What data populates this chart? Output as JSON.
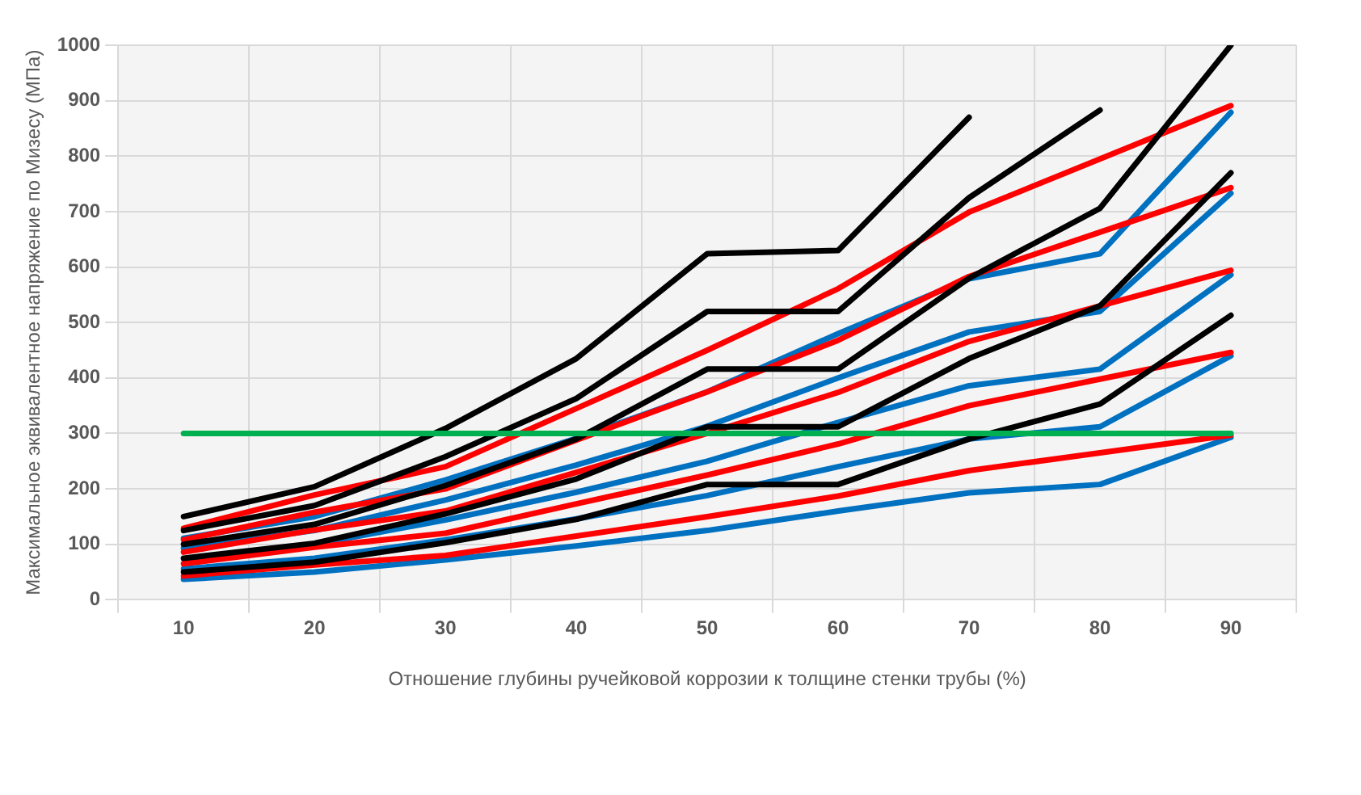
{
  "chart_data": {
    "type": "line",
    "xlabel": "Отношение глубины ручейковой коррозии к толщине стенки трубы (%)",
    "ylabel": "Максимальное эквивалентное напряжение по Мизесу (МПа)",
    "categories": [
      "10",
      "20",
      "30",
      "40",
      "50",
      "60",
      "70",
      "80",
      "90"
    ],
    "ylim": [
      0,
      1000
    ],
    "yticks": [
      0,
      100,
      200,
      300,
      400,
      500,
      600,
      700,
      800,
      900,
      1000
    ],
    "grid": true,
    "legend": false,
    "marker": "none",
    "line_style": "solid",
    "series": [
      {
        "color": "#00b050",
        "values": [
          300,
          300,
          300,
          300,
          300,
          300,
          300,
          300,
          300
        ]
      },
      {
        "color": "#000000",
        "values": [
          50,
          68,
          103,
          145,
          208,
          208,
          290,
          353,
          513
        ]
      },
      {
        "color": "#000000",
        "values": [
          75,
          102,
          155,
          218,
          312,
          312,
          435,
          530,
          770
        ]
      },
      {
        "color": "#000000",
        "values": [
          100,
          136,
          206,
          290,
          416,
          416,
          580,
          706,
          1000
        ]
      },
      {
        "color": "#000000",
        "values": [
          125,
          170,
          258,
          363,
          520,
          520,
          725,
          883,
          null
        ]
      },
      {
        "color": "#000000",
        "values": [
          150,
          204,
          309,
          435,
          624,
          630,
          870,
          null,
          null
        ]
      },
      {
        "color": "#ff0000",
        "values": [
          43,
          63,
          80,
          115,
          150,
          187,
          233,
          265,
          297
        ]
      },
      {
        "color": "#ff0000",
        "values": [
          65,
          95,
          120,
          173,
          225,
          281,
          350,
          398,
          446
        ]
      },
      {
        "color": "#ff0000",
        "values": [
          86,
          126,
          160,
          230,
          300,
          374,
          466,
          530,
          594
        ]
      },
      {
        "color": "#ff0000",
        "values": [
          108,
          158,
          200,
          288,
          375,
          468,
          583,
          663,
          743
        ]
      },
      {
        "color": "#ff0000",
        "values": [
          129,
          189,
          240,
          345,
          450,
          561,
          699,
          795,
          891
        ]
      },
      {
        "color": "#0070c0",
        "values": [
          37,
          50,
          72,
          97,
          125,
          160,
          193,
          208,
          293
        ]
      },
      {
        "color": "#0070c0",
        "values": [
          56,
          75,
          108,
          146,
          188,
          240,
          290,
          312,
          440
        ]
      },
      {
        "color": "#0070c0",
        "values": [
          74,
          100,
          144,
          194,
          250,
          320,
          386,
          416,
          586
        ]
      },
      {
        "color": "#0070c0",
        "values": [
          93,
          125,
          180,
          243,
          313,
          400,
          483,
          520,
          733
        ]
      },
      {
        "color": "#0070c0",
        "values": [
          111,
          150,
          216,
          291,
          375,
          480,
          579,
          624,
          879
        ]
      }
    ]
  }
}
